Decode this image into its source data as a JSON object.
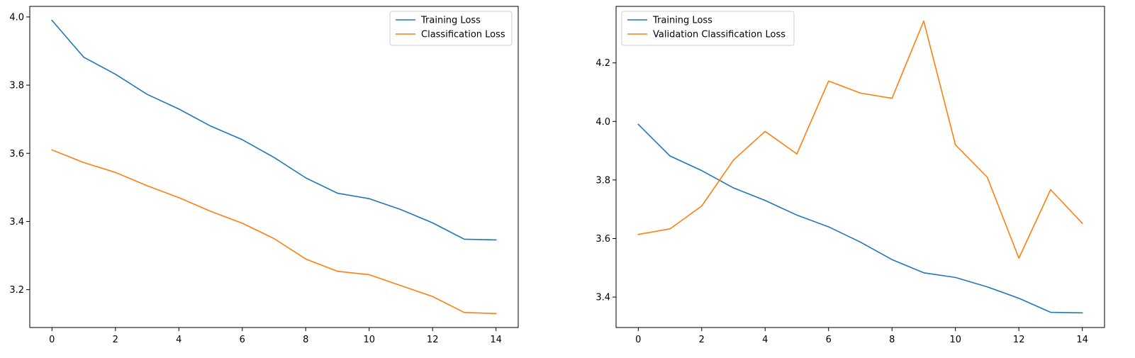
{
  "chart_data": [
    {
      "type": "line",
      "x": [
        0,
        1,
        2,
        3,
        4,
        5,
        6,
        7,
        8,
        9,
        10,
        11,
        12,
        13,
        14
      ],
      "series": [
        {
          "name": "Training Loss",
          "color": "#1f77b4",
          "values": [
            3.99,
            3.882,
            3.832,
            3.773,
            3.73,
            3.68,
            3.64,
            3.588,
            3.528,
            3.483,
            3.467,
            3.435,
            3.396,
            3.348,
            3.346
          ]
        },
        {
          "name": "Classification Loss",
          "color": "#ff7f0e",
          "values": [
            3.61,
            3.573,
            3.544,
            3.505,
            3.47,
            3.43,
            3.395,
            3.35,
            3.29,
            3.254,
            3.244,
            3.212,
            3.18,
            3.133,
            3.13
          ]
        }
      ],
      "title": "",
      "xlabel": "",
      "ylabel": "",
      "xlim": [
        -0.7,
        14.7
      ],
      "ylim": [
        3.089,
        4.031
      ],
      "xticks": [
        0,
        2,
        4,
        6,
        8,
        10,
        12,
        14
      ],
      "yticks": [
        3.2,
        3.4,
        3.6,
        3.8,
        4.0
      ],
      "ytick_labels": [
        "3.2",
        "3.4",
        "3.6",
        "3.8",
        "4.0"
      ],
      "grid": false,
      "legend": "upper right"
    },
    {
      "type": "line",
      "x": [
        0,
        1,
        2,
        3,
        4,
        5,
        6,
        7,
        8,
        9,
        10,
        11,
        12,
        13,
        14
      ],
      "series": [
        {
          "name": "Training Loss",
          "color": "#1f77b4",
          "values": [
            3.99,
            3.882,
            3.832,
            3.773,
            3.73,
            3.68,
            3.64,
            3.588,
            3.528,
            3.483,
            3.467,
            3.435,
            3.396,
            3.348,
            3.346
          ]
        },
        {
          "name": "Validation Classification Loss",
          "color": "#ff7f0e",
          "values": [
            3.614,
            3.633,
            3.711,
            3.868,
            3.966,
            3.889,
            4.138,
            4.097,
            4.079,
            4.343,
            3.92,
            3.81,
            3.533,
            3.767,
            3.652
          ]
        }
      ],
      "title": "",
      "xlabel": "",
      "ylabel": "",
      "xlim": [
        -0.7,
        14.7
      ],
      "ylim": [
        3.296,
        4.393
      ],
      "xticks": [
        0,
        2,
        4,
        6,
        8,
        10,
        12,
        14
      ],
      "yticks": [
        3.4,
        3.6,
        3.8,
        4.0,
        4.2
      ],
      "ytick_labels": [
        "3.4",
        "3.6",
        "3.8",
        "4.0",
        "4.2"
      ],
      "grid": false,
      "legend": "upper left"
    }
  ]
}
